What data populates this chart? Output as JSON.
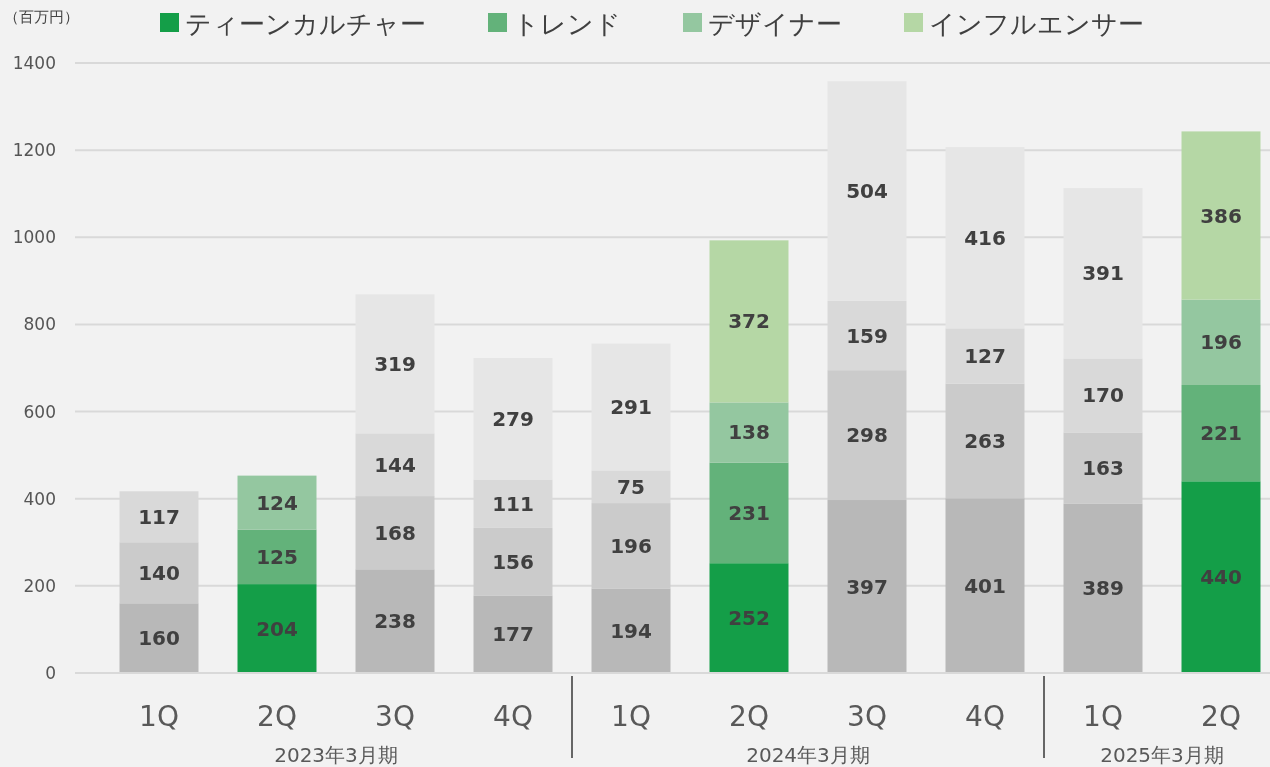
{
  "chart_data": {
    "type": "bar",
    "stacked": true,
    "ylabel": "（百万円）",
    "categories": [
      "1Q",
      "2Q",
      "3Q",
      "4Q",
      "1Q",
      "2Q",
      "3Q",
      "4Q",
      "1Q",
      "2Q"
    ],
    "series": [
      {
        "name": "ティーンカルチャー",
        "color": "#149e48",
        "colors": [
          "#b8b8b8",
          "#149e48",
          "#b8b8b8",
          "#b8b8b8",
          "#b8b8b8",
          "#149e48",
          "#b8b8b8",
          "#b8b8b8",
          "#b8b8b8",
          "#149e48"
        ],
        "values": [
          160,
          204,
          238,
          177,
          194,
          252,
          397,
          401,
          389,
          440
        ]
      },
      {
        "name": "トレンド",
        "color": "#63b27a",
        "colors": [
          "#cbcbcb",
          "#63b27a",
          "#cbcbcb",
          "#cbcbcb",
          "#cbcbcb",
          "#63b27a",
          "#cbcbcb",
          "#cbcbcb",
          "#cbcbcb",
          "#63b27a"
        ],
        "values": [
          140,
          125,
          168,
          156,
          196,
          231,
          298,
          263,
          163,
          221
        ]
      },
      {
        "name": "デザイナー",
        "color": "#94c7a0",
        "colors": [
          "#d9d9d9",
          "#94c7a0",
          "#d9d9d9",
          "#d9d9d9",
          "#d9d9d9",
          "#94c7a0",
          "#d9d9d9",
          "#d9d9d9",
          "#d9d9d9",
          "#94c7a0"
        ],
        "values": [
          117,
          124,
          144,
          111,
          75,
          138,
          159,
          127,
          170,
          196
        ]
      },
      {
        "name": "インフルエンサー",
        "color": "#b5d7a5",
        "colors": [
          null,
          null,
          "#e6e6e6",
          "#e6e6e6",
          "#e6e6e6",
          "#b5d7a5",
          "#e6e6e6",
          "#e6e6e6",
          "#e6e6e6",
          "#b5d7a5"
        ],
        "values": [
          null,
          null,
          319,
          279,
          291,
          372,
          504,
          416,
          391,
          386
        ]
      }
    ],
    "ylim": [
      0,
      1400
    ],
    "yticks": [
      0,
      200,
      400,
      600,
      800,
      1000,
      1200,
      1400
    ],
    "grid": "y",
    "legend": "top",
    "data_labels": true,
    "annotations": [
      "2023年3月期",
      "2024年3月期",
      "2025年3月期"
    ]
  }
}
